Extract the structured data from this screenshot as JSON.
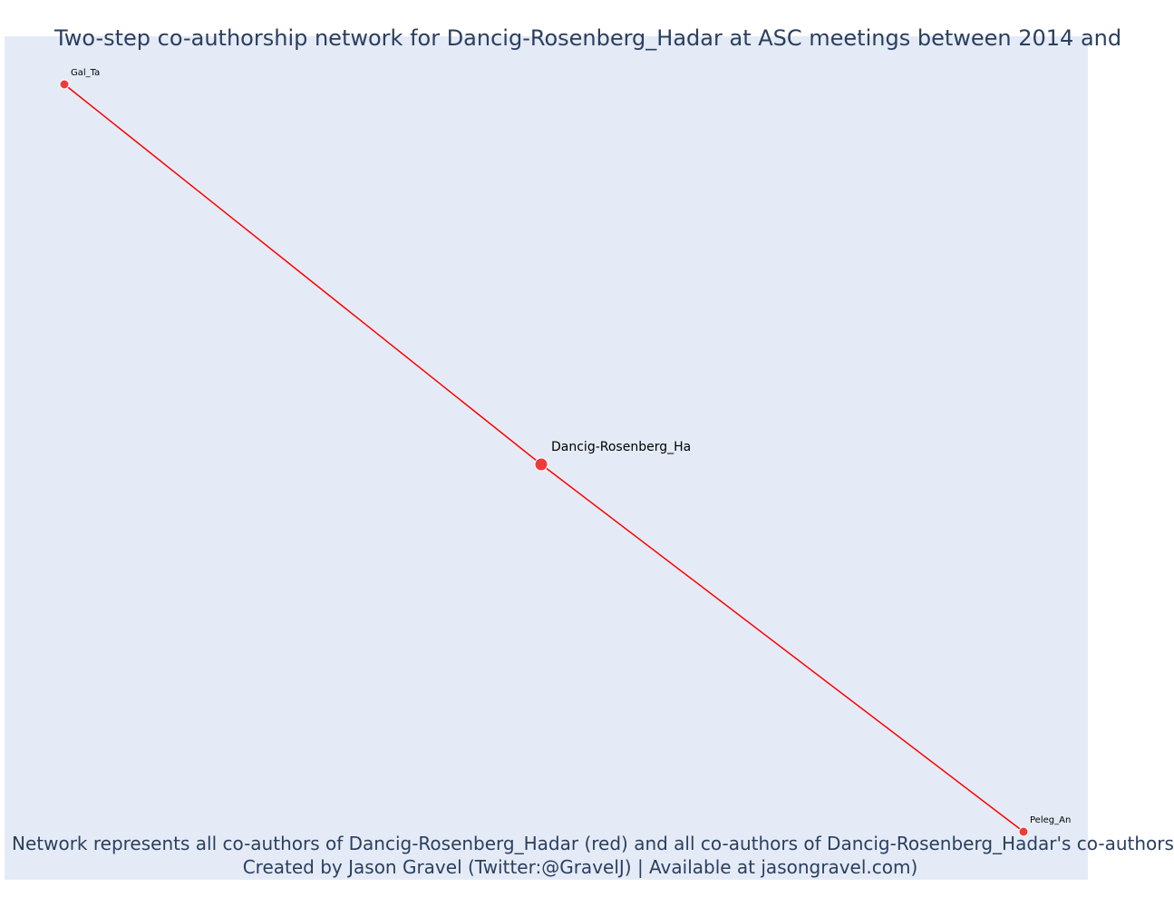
{
  "title": "Two-step co-authorship network for Dancig-Rosenberg_Hadar at ASC meetings between 2014 and",
  "captions": [
    "Network represents all co-authors of Dancig-Rosenberg_Hadar (red) and all co-authors of Dancig-Rosenberg_Hadar's co-authors",
    "Created by Jason Gravel (Twitter:@GravelJ) | Available at jasongravel.com)"
  ],
  "colors": {
    "edge": "#ff0000",
    "node": "#ef3a3a",
    "background": "#e5ebf6",
    "text": "#2a3f5f"
  },
  "network": {
    "nodes": [
      {
        "id": "Gal_Ta",
        "label": "Gal_Ta",
        "role": "co-author"
      },
      {
        "id": "Dancig-Rosenberg_Ha",
        "label": "Dancig-Rosenberg_Ha",
        "role": "focal"
      },
      {
        "id": "Peleg_An",
        "label": "Peleg_An",
        "role": "co-author"
      }
    ],
    "edges": [
      {
        "source": "Gal_Ta",
        "target": "Dancig-Rosenberg_Ha"
      },
      {
        "source": "Dancig-Rosenberg_Ha",
        "target": "Peleg_An"
      }
    ]
  }
}
